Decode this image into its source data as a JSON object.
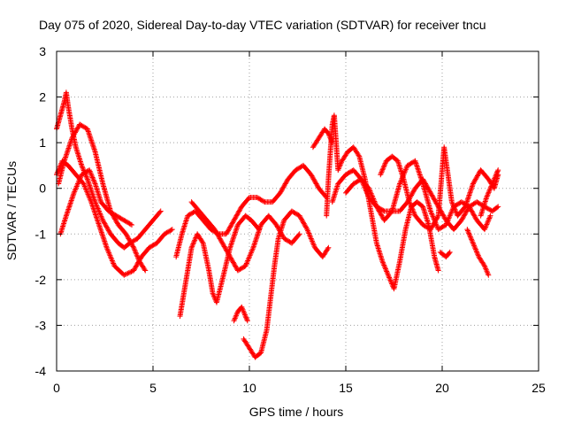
{
  "chart_data": {
    "type": "scatter",
    "title": "Day 075 of 2020, Sidereal Day-to-day VTEC variation (SDTVAR) for receiver tncu",
    "xlabel": "GPS time / hours",
    "ylabel": "SDTVAR / TECUs",
    "xlim": [
      0,
      25
    ],
    "ylim": [
      -4,
      3
    ],
    "xticks": [
      0,
      5,
      10,
      15,
      20,
      25
    ],
    "yticks": [
      -4,
      -3,
      -2,
      -1,
      0,
      1,
      2,
      3
    ],
    "grid": true,
    "marker": "+",
    "color": "#ff0000",
    "tracks": [
      {
        "name": "track-1",
        "points": [
          [
            0.0,
            0.3
          ],
          [
            0.3,
            0.6
          ],
          [
            0.6,
            0.5
          ],
          [
            1.0,
            0.3
          ],
          [
            1.4,
            0.1
          ],
          [
            1.8,
            -0.3
          ],
          [
            2.2,
            -0.8
          ],
          [
            2.6,
            -1.3
          ],
          [
            3.0,
            -1.7
          ],
          [
            3.5,
            -1.9
          ],
          [
            4.0,
            -1.8
          ],
          [
            4.4,
            -1.5
          ],
          [
            4.8,
            -1.3
          ],
          [
            5.2,
            -1.2
          ],
          [
            5.6,
            -1.0
          ],
          [
            6.0,
            -0.9
          ]
        ]
      },
      {
        "name": "track-2",
        "points": [
          [
            0.0,
            1.3
          ],
          [
            0.2,
            1.6
          ],
          [
            0.4,
            1.9
          ],
          [
            0.5,
            2.1
          ],
          [
            0.6,
            1.8
          ],
          [
            0.8,
            1.3
          ],
          [
            1.0,
            0.9
          ],
          [
            1.3,
            0.5
          ],
          [
            1.6,
            0.2
          ],
          [
            2.0,
            -0.3
          ],
          [
            2.4,
            -0.7
          ],
          [
            2.8,
            -1.0
          ],
          [
            3.2,
            -1.2
          ],
          [
            3.5,
            -1.3
          ],
          [
            3.8,
            -1.2
          ],
          [
            4.2,
            -1.1
          ],
          [
            4.6,
            -0.9
          ],
          [
            5.0,
            -0.7
          ],
          [
            5.4,
            -0.5
          ]
        ]
      },
      {
        "name": "track-3",
        "points": [
          [
            0.1,
            0.1
          ],
          [
            0.4,
            0.6
          ],
          [
            0.8,
            1.1
          ],
          [
            1.2,
            1.4
          ],
          [
            1.6,
            1.3
          ],
          [
            2.0,
            0.8
          ],
          [
            2.4,
            0.1
          ],
          [
            2.8,
            -0.5
          ],
          [
            3.2,
            -0.8
          ],
          [
            3.6,
            -1.0
          ],
          [
            4.0,
            -1.3
          ],
          [
            4.3,
            -1.6
          ],
          [
            4.6,
            -1.8
          ]
        ]
      },
      {
        "name": "track-4",
        "points": [
          [
            0.2,
            -1.0
          ],
          [
            0.5,
            -0.6
          ],
          [
            0.9,
            -0.1
          ],
          [
            1.3,
            0.3
          ],
          [
            1.7,
            0.4
          ],
          [
            2.0,
            0.1
          ],
          [
            2.3,
            -0.3
          ],
          [
            2.7,
            -0.5
          ],
          [
            3.1,
            -0.6
          ],
          [
            3.5,
            -0.7
          ],
          [
            3.9,
            -0.8
          ]
        ]
      },
      {
        "name": "track-5",
        "points": [
          [
            6.4,
            -2.8
          ],
          [
            6.6,
            -2.3
          ],
          [
            6.8,
            -1.8
          ],
          [
            7.0,
            -1.3
          ],
          [
            7.3,
            -1.0
          ],
          [
            7.6,
            -1.2
          ],
          [
            7.9,
            -1.8
          ],
          [
            8.1,
            -2.3
          ],
          [
            8.3,
            -2.5
          ],
          [
            8.6,
            -2.0
          ],
          [
            9.0,
            -1.3
          ],
          [
            9.4,
            -0.8
          ],
          [
            9.8,
            -0.6
          ],
          [
            10.1,
            -0.7
          ],
          [
            10.5,
            -0.9
          ]
        ]
      },
      {
        "name": "track-6",
        "points": [
          [
            6.2,
            -1.5
          ],
          [
            6.5,
            -1.0
          ],
          [
            6.8,
            -0.6
          ],
          [
            7.2,
            -0.5
          ],
          [
            7.6,
            -0.7
          ],
          [
            8.0,
            -0.9
          ],
          [
            8.4,
            -1.0
          ],
          [
            8.8,
            -1.0
          ],
          [
            9.2,
            -0.7
          ],
          [
            9.6,
            -0.4
          ],
          [
            10.0,
            -0.2
          ],
          [
            10.4,
            -0.2
          ],
          [
            10.8,
            -0.3
          ],
          [
            11.2,
            -0.3
          ],
          [
            11.6,
            -0.1
          ],
          [
            12.0,
            0.2
          ],
          [
            12.4,
            0.4
          ],
          [
            12.8,
            0.5
          ],
          [
            13.2,
            0.3
          ],
          [
            13.6,
            0.0
          ],
          [
            14.0,
            -0.2
          ]
        ]
      },
      {
        "name": "track-7",
        "points": [
          [
            7.0,
            -0.3
          ],
          [
            7.4,
            -0.5
          ],
          [
            7.8,
            -0.7
          ],
          [
            8.2,
            -0.9
          ],
          [
            8.6,
            -1.2
          ],
          [
            9.0,
            -1.5
          ],
          [
            9.4,
            -1.8
          ],
          [
            9.8,
            -1.7
          ],
          [
            10.2,
            -1.3
          ],
          [
            10.6,
            -0.8
          ],
          [
            11.0,
            -0.6
          ],
          [
            11.4,
            -0.8
          ],
          [
            11.8,
            -1.1
          ],
          [
            12.2,
            -1.2
          ],
          [
            12.6,
            -1.0
          ]
        ]
      },
      {
        "name": "track-8",
        "points": [
          [
            9.2,
            -2.9
          ],
          [
            9.4,
            -2.7
          ],
          [
            9.6,
            -2.6
          ],
          [
            9.8,
            -2.8
          ],
          [
            9.9,
            -2.9
          ]
        ]
      },
      {
        "name": "track-9",
        "points": [
          [
            9.7,
            -3.3
          ],
          [
            10.0,
            -3.5
          ],
          [
            10.3,
            -3.7
          ],
          [
            10.6,
            -3.6
          ],
          [
            10.9,
            -3.1
          ],
          [
            11.1,
            -2.4
          ],
          [
            11.3,
            -1.7
          ],
          [
            11.5,
            -1.1
          ],
          [
            11.8,
            -0.7
          ],
          [
            12.2,
            -0.5
          ],
          [
            12.6,
            -0.6
          ],
          [
            13.0,
            -0.9
          ],
          [
            13.4,
            -1.3
          ],
          [
            13.8,
            -1.5
          ],
          [
            14.1,
            -1.3
          ]
        ]
      },
      {
        "name": "track-10",
        "points": [
          [
            13.3,
            0.9
          ],
          [
            13.6,
            1.1
          ],
          [
            13.9,
            1.3
          ],
          [
            14.1,
            1.2
          ],
          [
            14.3,
            1.0
          ]
        ]
      },
      {
        "name": "track-11",
        "points": [
          [
            14.0,
            -0.6
          ],
          [
            14.1,
            0.2
          ],
          [
            14.2,
            0.8
          ],
          [
            14.3,
            1.4
          ],
          [
            14.4,
            1.6
          ],
          [
            14.5,
            1.0
          ],
          [
            14.6,
            0.4
          ],
          [
            14.8,
            0.6
          ],
          [
            15.1,
            0.8
          ],
          [
            15.4,
            0.9
          ],
          [
            15.7,
            0.7
          ],
          [
            16.0,
            0.2
          ],
          [
            16.3,
            -0.5
          ],
          [
            16.6,
            -1.2
          ],
          [
            16.9,
            -1.6
          ],
          [
            17.2,
            -1.9
          ],
          [
            17.5,
            -2.2
          ],
          [
            17.8,
            -1.6
          ],
          [
            18.1,
            -0.9
          ],
          [
            18.4,
            -0.4
          ],
          [
            18.7,
            -0.3
          ],
          [
            19.0,
            -0.4
          ],
          [
            19.3,
            -0.8
          ],
          [
            19.6,
            -1.5
          ],
          [
            19.8,
            -1.8
          ]
        ]
      },
      {
        "name": "track-12",
        "points": [
          [
            14.3,
            -0.3
          ],
          [
            14.6,
            0.1
          ],
          [
            15.0,
            0.3
          ],
          [
            15.4,
            0.4
          ],
          [
            15.8,
            0.2
          ],
          [
            16.2,
            -0.2
          ],
          [
            16.6,
            -0.4
          ],
          [
            17.0,
            -0.5
          ],
          [
            17.4,
            -0.5
          ],
          [
            17.8,
            -0.5
          ],
          [
            18.2,
            -0.3
          ],
          [
            18.6,
            0.0
          ],
          [
            19.0,
            0.2
          ],
          [
            19.4,
            -0.1
          ],
          [
            19.8,
            -0.4
          ],
          [
            20.2,
            -0.7
          ],
          [
            20.6,
            -0.9
          ],
          [
            21.0,
            -0.7
          ],
          [
            21.4,
            -0.4
          ],
          [
            21.8,
            -0.3
          ],
          [
            22.2,
            -0.4
          ],
          [
            22.6,
            -0.5
          ],
          [
            22.9,
            -0.4
          ]
        ]
      },
      {
        "name": "track-13",
        "points": [
          [
            15.0,
            -0.1
          ],
          [
            15.4,
            0.1
          ],
          [
            15.8,
            0.2
          ],
          [
            16.2,
            0.0
          ],
          [
            16.6,
            -0.4
          ],
          [
            17.0,
            -0.7
          ],
          [
            17.4,
            -0.5
          ],
          [
            17.8,
            0.1
          ],
          [
            18.2,
            0.5
          ],
          [
            18.6,
            0.6
          ],
          [
            19.0,
            0.1
          ],
          [
            19.4,
            -0.5
          ],
          [
            19.8,
            -0.9
          ],
          [
            20.2,
            -0.8
          ],
          [
            20.6,
            -0.4
          ],
          [
            21.0,
            -0.3
          ],
          [
            21.4,
            -0.4
          ],
          [
            21.8,
            -0.7
          ],
          [
            22.2,
            -0.9
          ],
          [
            22.5,
            -0.6
          ]
        ]
      },
      {
        "name": "track-14",
        "points": [
          [
            16.8,
            0.3
          ],
          [
            17.1,
            0.6
          ],
          [
            17.4,
            0.7
          ],
          [
            17.7,
            0.6
          ],
          [
            18.0,
            0.2
          ],
          [
            18.3,
            -0.3
          ],
          [
            18.6,
            -0.6
          ],
          [
            19.0,
            -0.8
          ],
          [
            19.4,
            -0.9
          ],
          [
            19.8,
            -0.6
          ],
          [
            20.0,
            0.4
          ],
          [
            20.1,
            0.9
          ],
          [
            20.3,
            0.3
          ],
          [
            20.5,
            -0.3
          ],
          [
            20.8,
            -0.6
          ],
          [
            21.2,
            -0.4
          ],
          [
            21.6,
            0.1
          ],
          [
            22.0,
            0.4
          ],
          [
            22.4,
            0.2
          ],
          [
            22.7,
            0.0
          ],
          [
            22.9,
            0.3
          ]
        ]
      },
      {
        "name": "track-15",
        "points": [
          [
            19.9,
            -1.4
          ],
          [
            20.2,
            -1.5
          ],
          [
            20.4,
            -1.4
          ]
        ]
      },
      {
        "name": "track-16",
        "points": [
          [
            21.3,
            -0.9
          ],
          [
            21.6,
            -1.2
          ],
          [
            21.9,
            -1.5
          ],
          [
            22.2,
            -1.7
          ],
          [
            22.4,
            -1.9
          ]
        ]
      },
      {
        "name": "track-17",
        "points": [
          [
            22.0,
            -0.6
          ],
          [
            22.3,
            -0.2
          ],
          [
            22.6,
            0.1
          ],
          [
            22.8,
            0.3
          ],
          [
            22.9,
            0.4
          ]
        ]
      }
    ]
  }
}
